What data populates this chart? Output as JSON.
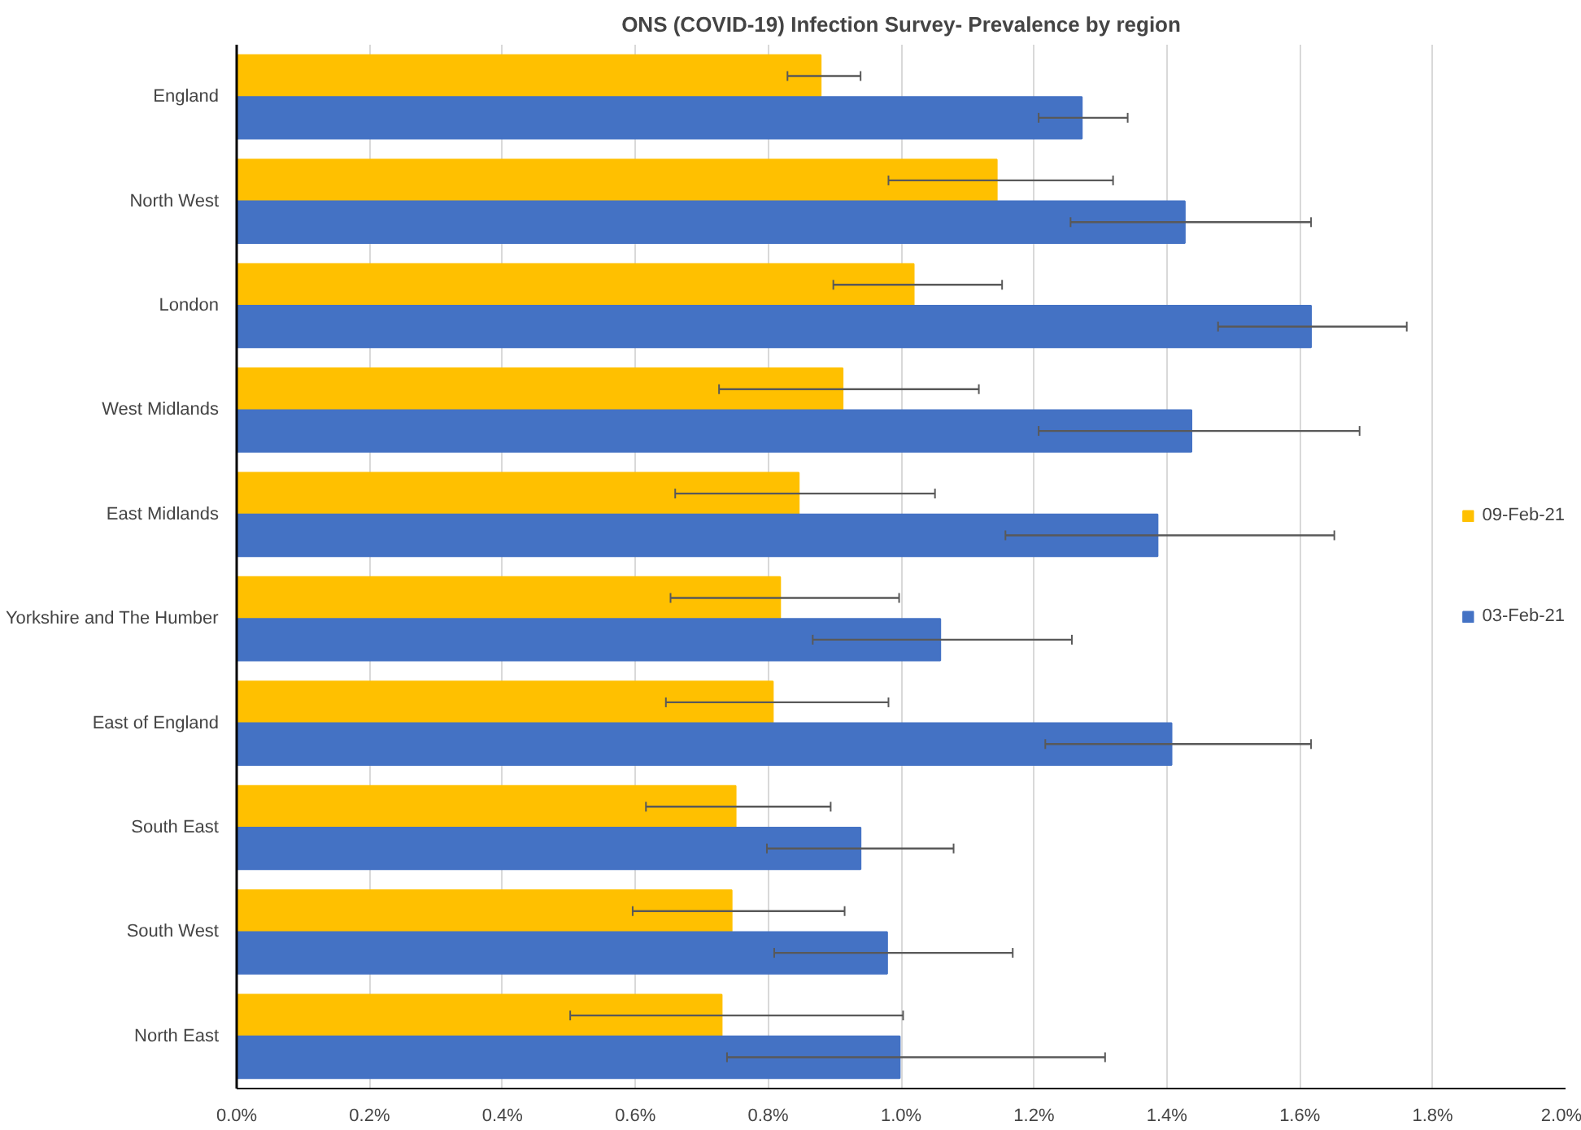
{
  "chart_data": {
    "type": "bar",
    "orientation": "horizontal",
    "title": "ONS (COVID-19) Infection Survey- Prevalence by region",
    "categories": [
      "England",
      "North West",
      "London",
      "West Midlands",
      "East Midlands",
      "Yorkshire and The Humber",
      "East of England",
      "South East",
      "South West",
      "North East"
    ],
    "series": [
      {
        "name": "09-Feb-21",
        "color": "#ffc000",
        "values": [
          0.879,
          1.144,
          1.019,
          0.912,
          0.846,
          0.818,
          0.807,
          0.751,
          0.745,
          0.73
        ],
        "errors": [
          [
            0.829,
            0.939
          ],
          [
            0.981,
            1.319
          ],
          [
            0.898,
            1.152
          ],
          [
            0.726,
            1.117
          ],
          [
            0.66,
            1.051
          ],
          [
            0.653,
            0.997
          ],
          [
            0.646,
            0.981
          ],
          [
            0.616,
            0.894
          ],
          [
            0.596,
            0.915
          ],
          [
            0.502,
            1.003
          ]
        ]
      },
      {
        "name": "03-Feb-21",
        "color": "#4472c4",
        "values": [
          1.272,
          1.427,
          1.617,
          1.437,
          1.386,
          1.059,
          1.407,
          0.939,
          0.979,
          0.998
        ],
        "errors": [
          [
            1.207,
            1.341
          ],
          [
            1.255,
            1.617
          ],
          [
            1.477,
            1.761
          ],
          [
            1.207,
            1.69
          ],
          [
            1.157,
            1.652
          ],
          [
            0.867,
            1.257
          ],
          [
            1.217,
            1.617
          ],
          [
            0.798,
            1.079
          ],
          [
            0.809,
            1.168
          ],
          [
            0.738,
            1.307
          ]
        ]
      }
    ],
    "xlim": [
      0,
      2.0
    ],
    "xticks": [
      {
        "value": 0,
        "label": "0.0%"
      },
      {
        "value": 0.2,
        "label": "0.2%"
      },
      {
        "value": 0.4,
        "label": "0.4%"
      },
      {
        "value": 0.6,
        "label": "0.6%"
      },
      {
        "value": 0.8,
        "label": "0.8%"
      },
      {
        "value": 1.0,
        "label": "1.0%"
      },
      {
        "value": 1.2,
        "label": "1.2%"
      },
      {
        "value": 1.4,
        "label": "1.4%"
      },
      {
        "value": 1.6,
        "label": "1.6%"
      },
      {
        "value": 1.8,
        "label": "1.8%"
      },
      {
        "value": 2.0,
        "label": "2.0%"
      }
    ],
    "grid": "x",
    "legend": "right"
  }
}
